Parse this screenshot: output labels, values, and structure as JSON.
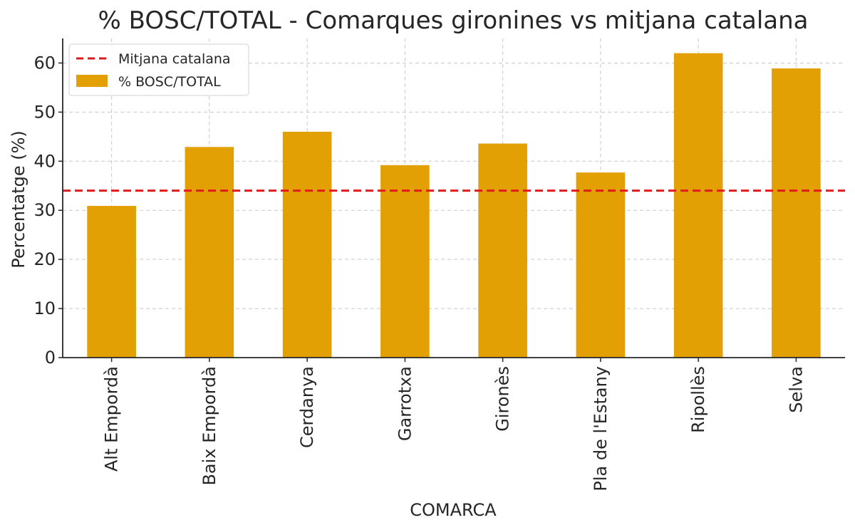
{
  "chart_data": {
    "type": "bar",
    "title": "% BOSC/TOTAL - Comarques gironines vs mitjana catalana",
    "xlabel": "COMARCA",
    "ylabel": "Percentatge (%)",
    "categories": [
      "Alt Empordà",
      "Baix Empordà",
      "Cerdanya",
      "Garrotxa",
      "Gironès",
      "Pla de l'Estany",
      "Ripollès",
      "Selva"
    ],
    "values": [
      30.9,
      42.9,
      46.0,
      39.2,
      43.6,
      37.7,
      62.0,
      58.9
    ],
    "series_name": "% BOSC/TOTAL",
    "reference_line": {
      "name": "Mitjana catalana",
      "value": 34.0
    },
    "ylim": [
      0,
      65
    ],
    "yticks": [
      0,
      10,
      20,
      30,
      40,
      50,
      60
    ],
    "grid": true,
    "legend_position": "top-left",
    "colors": {
      "bar": "#E3A004",
      "reference": "#E31A1C",
      "grid": "#C8C8C8",
      "axis": "#262626"
    }
  }
}
